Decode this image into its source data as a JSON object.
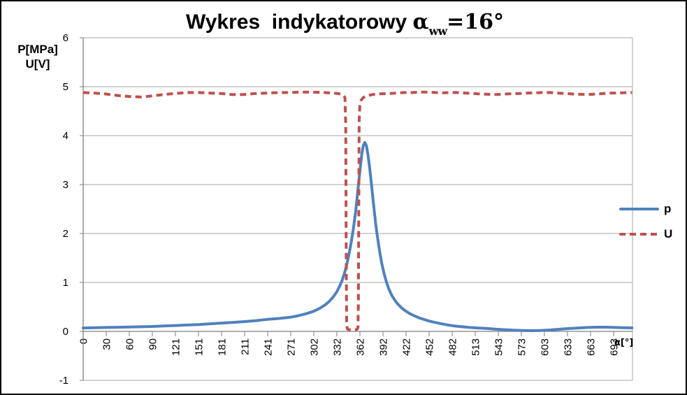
{
  "title": {
    "prefix": "Wykres  indykatorowy ",
    "alpha_symbol": "α",
    "subscript": "ww",
    "suffix": "=16°",
    "full_text": "Wykres indykatorowy αww=16°"
  },
  "axes": {
    "y_label_line1": "P[MPa]",
    "y_label_line2": "U[V]",
    "x_label": "α[°]"
  },
  "legend": [
    {
      "label": "p",
      "color": "#4F81BD",
      "style": "solid"
    },
    {
      "label": "U",
      "color": "#C0504D",
      "style": "dashed"
    }
  ],
  "colors": {
    "gridline": "#A6A6A6",
    "axis_line": "#7F7F7F",
    "tick_text": "#000000",
    "background": "#FFFFFF",
    "frame": "#000000"
  },
  "chart_data": {
    "type": "line",
    "title": "Wykres indykatorowy αww=16°",
    "xlabel": "α[°]",
    "ylabel": "P[MPa] U[V]",
    "xlim": [
      0,
      717
    ],
    "ylim": [
      -1,
      6
    ],
    "grid": "horizontal",
    "legend_position": "right",
    "y_ticks": [
      6,
      5,
      4,
      3,
      2,
      1,
      0,
      -1
    ],
    "x_tick_labels": [
      "0",
      "30",
      "60",
      "90",
      "121",
      "151",
      "181",
      "211",
      "241",
      "271",
      "302",
      "332",
      "362",
      "392",
      "422",
      "452",
      "482",
      "513",
      "543",
      "573",
      "603",
      "633",
      "663",
      "693"
    ],
    "series": [
      {
        "name": "p",
        "color": "#4F81BD",
        "style": "solid",
        "points": [
          [
            0,
            0.07
          ],
          [
            15,
            0.075
          ],
          [
            30,
            0.08
          ],
          [
            45,
            0.085
          ],
          [
            60,
            0.09
          ],
          [
            75,
            0.095
          ],
          [
            90,
            0.1
          ],
          [
            105,
            0.11
          ],
          [
            121,
            0.12
          ],
          [
            136,
            0.13
          ],
          [
            151,
            0.14
          ],
          [
            166,
            0.155
          ],
          [
            181,
            0.17
          ],
          [
            196,
            0.185
          ],
          [
            211,
            0.2
          ],
          [
            226,
            0.22
          ],
          [
            241,
            0.245
          ],
          [
            256,
            0.265
          ],
          [
            271,
            0.29
          ],
          [
            281,
            0.32
          ],
          [
            291,
            0.36
          ],
          [
            301,
            0.41
          ],
          [
            309,
            0.47
          ],
          [
            316,
            0.54
          ],
          [
            322,
            0.62
          ],
          [
            327,
            0.71
          ],
          [
            331,
            0.8
          ],
          [
            335,
            0.92
          ],
          [
            338,
            1.03
          ],
          [
            341,
            1.17
          ],
          [
            344,
            1.34
          ],
          [
            347,
            1.55
          ],
          [
            350,
            1.8
          ],
          [
            353,
            2.1
          ],
          [
            356,
            2.45
          ],
          [
            358,
            2.75
          ],
          [
            360,
            3.05
          ],
          [
            362,
            3.35
          ],
          [
            364,
            3.62
          ],
          [
            366,
            3.8
          ],
          [
            368,
            3.86
          ],
          [
            370,
            3.8
          ],
          [
            372,
            3.62
          ],
          [
            374,
            3.38
          ],
          [
            376,
            3.1
          ],
          [
            378,
            2.8
          ],
          [
            380,
            2.5
          ],
          [
            382,
            2.22
          ],
          [
            384,
            1.98
          ],
          [
            387,
            1.66
          ],
          [
            390,
            1.4
          ],
          [
            393,
            1.19
          ],
          [
            396,
            1.02
          ],
          [
            399,
            0.88
          ],
          [
            403,
            0.74
          ],
          [
            407,
            0.64
          ],
          [
            411,
            0.56
          ],
          [
            416,
            0.48
          ],
          [
            421,
            0.42
          ],
          [
            427,
            0.36
          ],
          [
            433,
            0.315
          ],
          [
            440,
            0.27
          ],
          [
            448,
            0.23
          ],
          [
            456,
            0.195
          ],
          [
            465,
            0.165
          ],
          [
            475,
            0.135
          ],
          [
            485,
            0.11
          ],
          [
            495,
            0.095
          ],
          [
            505,
            0.08
          ],
          [
            515,
            0.07
          ],
          [
            527,
            0.06
          ],
          [
            539,
            0.045
          ],
          [
            551,
            0.035
          ],
          [
            563,
            0.025
          ],
          [
            575,
            0.018
          ],
          [
            587,
            0.015
          ],
          [
            599,
            0.02
          ],
          [
            611,
            0.03
          ],
          [
            623,
            0.045
          ],
          [
            635,
            0.058
          ],
          [
            647,
            0.07
          ],
          [
            659,
            0.08
          ],
          [
            671,
            0.086
          ],
          [
            683,
            0.086
          ],
          [
            695,
            0.08
          ],
          [
            706,
            0.075
          ],
          [
            717,
            0.072
          ]
        ]
      },
      {
        "name": "U",
        "color": "#C0504D",
        "style": "dashed",
        "points": [
          [
            0,
            4.88
          ],
          [
            15,
            4.87
          ],
          [
            30,
            4.85
          ],
          [
            45,
            4.82
          ],
          [
            60,
            4.8
          ],
          [
            75,
            4.79
          ],
          [
            90,
            4.81
          ],
          [
            105,
            4.84
          ],
          [
            120,
            4.86
          ],
          [
            135,
            4.88
          ],
          [
            150,
            4.88
          ],
          [
            165,
            4.87
          ],
          [
            180,
            4.86
          ],
          [
            195,
            4.84
          ],
          [
            210,
            4.84
          ],
          [
            225,
            4.86
          ],
          [
            240,
            4.87
          ],
          [
            255,
            4.88
          ],
          [
            270,
            4.88
          ],
          [
            285,
            4.89
          ],
          [
            300,
            4.89
          ],
          [
            315,
            4.88
          ],
          [
            325,
            4.87
          ],
          [
            333,
            4.86
          ],
          [
            339,
            4.84
          ],
          [
            342,
            4.78
          ],
          [
            343,
            4.2
          ],
          [
            343.6,
            1.8
          ],
          [
            344.2,
            0.2
          ],
          [
            345,
            0.05
          ],
          [
            348,
            0.035
          ],
          [
            352,
            0.03
          ],
          [
            356,
            0.035
          ],
          [
            358,
            0.045
          ],
          [
            359,
            0.08
          ],
          [
            359.6,
            0.6
          ],
          [
            360.1,
            2.6
          ],
          [
            360.6,
            4.3
          ],
          [
            361.5,
            4.62
          ],
          [
            363,
            4.72
          ],
          [
            366,
            4.78
          ],
          [
            370,
            4.81
          ],
          [
            375,
            4.83
          ],
          [
            382,
            4.85
          ],
          [
            390,
            4.855
          ],
          [
            400,
            4.86
          ],
          [
            410,
            4.87
          ],
          [
            420,
            4.88
          ],
          [
            430,
            4.88
          ],
          [
            440,
            4.89
          ],
          [
            450,
            4.89
          ],
          [
            460,
            4.88
          ],
          [
            470,
            4.875
          ],
          [
            480,
            4.88
          ],
          [
            490,
            4.88
          ],
          [
            500,
            4.87
          ],
          [
            510,
            4.86
          ],
          [
            520,
            4.85
          ],
          [
            530,
            4.845
          ],
          [
            540,
            4.84
          ],
          [
            550,
            4.85
          ],
          [
            560,
            4.855
          ],
          [
            570,
            4.86
          ],
          [
            580,
            4.87
          ],
          [
            590,
            4.875
          ],
          [
            600,
            4.88
          ],
          [
            610,
            4.88
          ],
          [
            620,
            4.87
          ],
          [
            630,
            4.86
          ],
          [
            640,
            4.85
          ],
          [
            650,
            4.845
          ],
          [
            660,
            4.84
          ],
          [
            670,
            4.85
          ],
          [
            680,
            4.86
          ],
          [
            690,
            4.87
          ],
          [
            700,
            4.872
          ],
          [
            710,
            4.878
          ],
          [
            717,
            4.88
          ]
        ]
      }
    ]
  }
}
